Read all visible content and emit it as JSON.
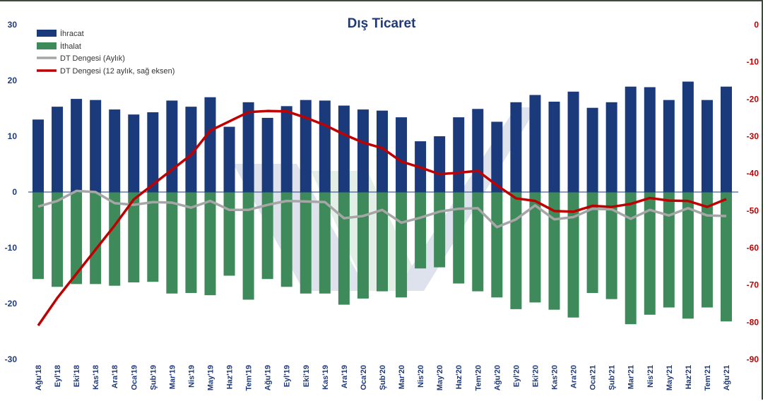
{
  "chart_data": {
    "type": "bar",
    "title": "Dış Ticaret",
    "categories": [
      "Ağu'18",
      "Eyl'18",
      "Eki'18",
      "Kas'18",
      "Ara'18",
      "Oca'19",
      "Şub'19",
      "Mar'19",
      "Nis'19",
      "May'19",
      "Haz'19",
      "Tem'19",
      "Ağu'19",
      "Eyl'19",
      "Eki'19",
      "Kas'19",
      "Ara'19",
      "Oca'20",
      "Şub'20",
      "Mar'20",
      "Nis'20",
      "May'20",
      "Haz'20",
      "Tem'20",
      "Ağu'20",
      "Eyl'20",
      "Eki'20",
      "Kas'20",
      "Ara'20",
      "Oca'21",
      "Şub'21",
      "Mar'21",
      "Nis'21",
      "May'21",
      "Haz'21",
      "Tem'21",
      "Ağu'21"
    ],
    "left_axis": {
      "ylim": [
        -30,
        30
      ],
      "ticks": [
        30,
        20,
        10,
        0,
        -10,
        -20,
        -30
      ]
    },
    "right_axis": {
      "ylim": [
        -90,
        0
      ],
      "ticks": [
        0,
        -10,
        -20,
        -30,
        -40,
        -50,
        -60,
        -70,
        -80,
        -90
      ]
    },
    "series": [
      {
        "name": "İhracat",
        "type": "bar",
        "axis": "left",
        "color": "#1a3a7c",
        "values": [
          13.0,
          15.3,
          16.7,
          16.5,
          14.8,
          13.9,
          14.3,
          16.4,
          15.3,
          17.0,
          11.7,
          16.1,
          13.3,
          15.4,
          16.5,
          16.4,
          15.5,
          14.8,
          14.6,
          13.4,
          9.1,
          10.0,
          13.4,
          14.9,
          12.6,
          16.1,
          17.4,
          16.2,
          18.0,
          15.1,
          16.1,
          18.9,
          18.8,
          16.5,
          19.8,
          16.5,
          18.9
        ]
      },
      {
        "name": "İthalat",
        "type": "bar",
        "axis": "left",
        "color": "#3e8a5a",
        "values": [
          -15.6,
          -17.0,
          -16.5,
          -16.5,
          -16.8,
          -16.2,
          -16.1,
          -18.2,
          -18.1,
          -18.5,
          -15.0,
          -19.3,
          -15.6,
          -17.0,
          -18.2,
          -18.2,
          -20.2,
          -19.1,
          -17.8,
          -18.9,
          -13.7,
          -13.5,
          -16.4,
          -17.8,
          -18.9,
          -21.0,
          -19.8,
          -21.1,
          -22.5,
          -18.1,
          -19.2,
          -23.7,
          -22.0,
          -20.7,
          -22.7,
          -20.7,
          -23.2
        ]
      },
      {
        "name": "DT Dengesi (Aylık)",
        "type": "line",
        "axis": "left",
        "color": "#a6a6a6",
        "values": [
          -2.6,
          -1.6,
          0.2,
          0.0,
          -2.0,
          -2.3,
          -1.8,
          -1.9,
          -2.8,
          -1.6,
          -3.2,
          -3.2,
          -2.3,
          -1.6,
          -1.7,
          -1.8,
          -4.7,
          -4.3,
          -3.2,
          -5.5,
          -4.6,
          -3.5,
          -3.0,
          -2.9,
          -6.3,
          -4.9,
          -2.4,
          -4.9,
          -4.5,
          -3.0,
          -3.1,
          -4.8,
          -3.2,
          -4.2,
          -2.9,
          -4.2,
          -4.3
        ]
      },
      {
        "name": "DT Dengesi (12 aylık, sağ eksen)",
        "type": "line",
        "axis": "right",
        "color": "#c00000",
        "values": [
          -80.9,
          -73.5,
          -67.0,
          -60.5,
          -54.0,
          -47.0,
          -43.0,
          -39.0,
          -35.0,
          -28.5,
          -26.0,
          -23.5,
          -23.2,
          -23.3,
          -25.0,
          -27.0,
          -29.5,
          -31.7,
          -33.2,
          -36.8,
          -38.4,
          -40.2,
          -39.8,
          -39.3,
          -43.2,
          -46.7,
          -47.4,
          -50.1,
          -50.3,
          -48.7,
          -49.0,
          -48.2,
          -46.6,
          -47.3,
          -47.4,
          -49.0,
          -46.9
        ]
      }
    ],
    "legend": {
      "position": "top-left"
    },
    "grid": false
  }
}
